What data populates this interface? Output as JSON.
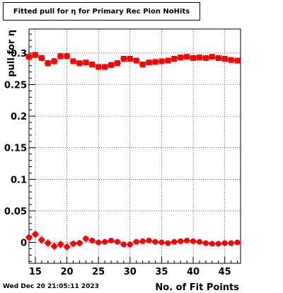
{
  "chart_data": {
    "type": "scatter",
    "title": "Fitted pull for  η for Primary Rec Pion NoHits",
    "xlabel": "No. of Fit Points",
    "ylabel": "pull for  η",
    "xlim": [
      14,
      47.5
    ],
    "ylim": [
      -0.033,
      0.338
    ],
    "x_ticks": [
      15,
      20,
      25,
      30,
      35,
      40,
      45
    ],
    "y_ticks": [
      0,
      0.05,
      0.1,
      0.15,
      0.2,
      0.25,
      0.3
    ],
    "grid": true,
    "marker_color": "#ff0000",
    "series": [
      {
        "marker": "square",
        "x": [
          14,
          15,
          16,
          17,
          18,
          19,
          20,
          21,
          22,
          23,
          24,
          25,
          26,
          27,
          28,
          29,
          30,
          31,
          32,
          33,
          34,
          35,
          36,
          37,
          38,
          39,
          40,
          41,
          42,
          43,
          44,
          45,
          46,
          47
        ],
        "y": [
          0.294,
          0.297,
          0.292,
          0.284,
          0.287,
          0.295,
          0.295,
          0.287,
          0.284,
          0.285,
          0.282,
          0.278,
          0.278,
          0.281,
          0.284,
          0.291,
          0.291,
          0.288,
          0.282,
          0.285,
          0.286,
          0.287,
          0.288,
          0.291,
          0.293,
          0.294,
          0.292,
          0.293,
          0.292,
          0.294,
          0.292,
          0.291,
          0.289,
          0.288
        ],
        "yerr": [
          0.005,
          0.005,
          0.005,
          0.005,
          0.005,
          0.005,
          0.005,
          0.004,
          0.004,
          0.004,
          0.004,
          0.004,
          0.004,
          0.004,
          0.004,
          0.004,
          0.004,
          0.004,
          0.004,
          0.004,
          0.004,
          0.004,
          0.004,
          0.004,
          0.004,
          0.004,
          0.004,
          0.004,
          0.004,
          0.004,
          0.004,
          0.004,
          0.004,
          0.004
        ]
      },
      {
        "marker": "circle",
        "x": [
          14,
          15,
          16,
          17,
          18,
          19,
          20,
          21,
          22,
          23,
          24,
          25,
          26,
          27,
          28,
          29,
          30,
          31,
          32,
          33,
          34,
          35,
          36,
          37,
          38,
          39,
          40,
          41,
          42,
          43,
          44,
          45,
          46,
          47
        ],
        "y": [
          0.008,
          0.013,
          0.004,
          -0.001,
          -0.006,
          -0.003,
          -0.007,
          -0.002,
          -0.001,
          0.006,
          0.003,
          0.0,
          0.001,
          0.003,
          0.001,
          -0.003,
          -0.003,
          0.001,
          0.002,
          0.003,
          0.001,
          0.0,
          -0.001,
          0.001,
          0.002,
          0.003,
          0.002,
          0.001,
          -0.001,
          -0.002,
          -0.002,
          -0.001,
          -0.001,
          0.0
        ],
        "yerr": [
          0.006,
          0.006,
          0.006,
          0.006,
          0.006,
          0.006,
          0.006,
          0.005,
          0.005,
          0.005,
          0.004,
          0.004,
          0.004,
          0.004,
          0.004,
          0.004,
          0.004,
          0.004,
          0.004,
          0.004,
          0.004,
          0.004,
          0.004,
          0.004,
          0.004,
          0.004,
          0.004,
          0.004,
          0.004,
          0.004,
          0.004,
          0.004,
          0.004,
          0.004
        ]
      }
    ]
  },
  "footer": {
    "timestamp": "Wed Dec 20 21:05:11 2023"
  }
}
